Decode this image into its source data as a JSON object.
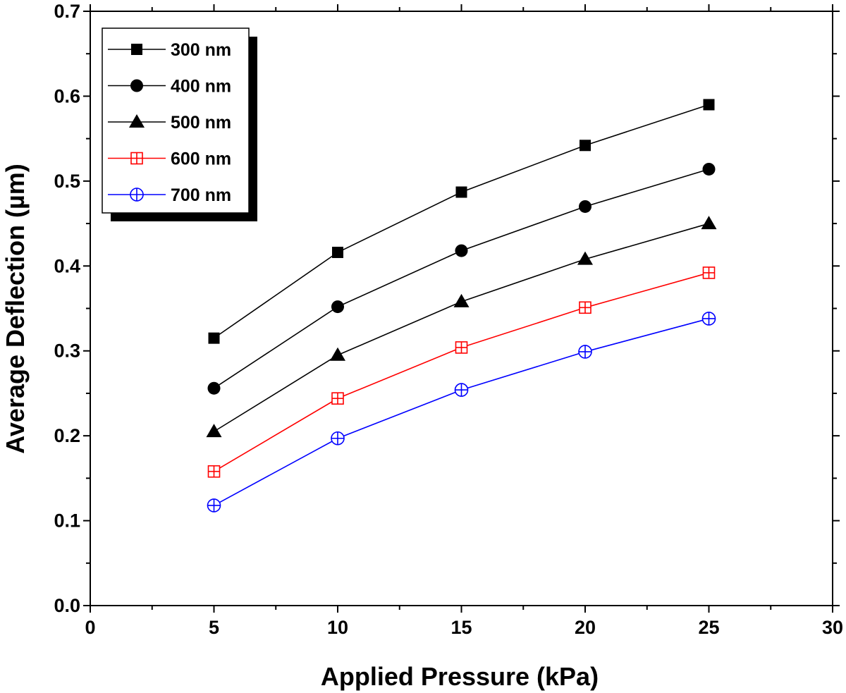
{
  "chart_data": {
    "type": "line",
    "xlabel": "Applied Pressure (kPa)",
    "ylabel": "Average Deflection (µm)",
    "xlim": [
      0,
      30
    ],
    "ylim": [
      0.0,
      0.7
    ],
    "xticks": [
      0,
      5,
      10,
      15,
      20,
      25,
      30
    ],
    "xtick_labels": [
      "0",
      "5",
      "10",
      "15",
      "20",
      "25",
      "30"
    ],
    "yticks": [
      0.0,
      0.1,
      0.2,
      0.3,
      0.4,
      0.5,
      0.6,
      0.7
    ],
    "ytick_labels": [
      "0.0",
      "0.1",
      "0.2",
      "0.3",
      "0.4",
      "0.5",
      "0.6",
      "0.7"
    ],
    "grid": false,
    "legend_position": "top-left",
    "x": [
      5,
      10,
      15,
      20,
      25
    ],
    "series": [
      {
        "name": "300 nm",
        "values": [
          0.315,
          0.416,
          0.487,
          0.542,
          0.59
        ],
        "color": "#000000",
        "marker": "square-filled"
      },
      {
        "name": "400 nm",
        "values": [
          0.256,
          0.352,
          0.418,
          0.47,
          0.514
        ],
        "color": "#000000",
        "marker": "circle-filled"
      },
      {
        "name": "500 nm",
        "values": [
          0.205,
          0.295,
          0.358,
          0.408,
          0.45
        ],
        "color": "#000000",
        "marker": "triangle-filled"
      },
      {
        "name": "600 nm",
        "values": [
          0.158,
          0.244,
          0.304,
          0.351,
          0.392
        ],
        "color": "#ff0000",
        "marker": "square-crossed-open"
      },
      {
        "name": "700 nm",
        "values": [
          0.118,
          0.197,
          0.254,
          0.299,
          0.338
        ],
        "color": "#0000ff",
        "marker": "circle-crossed-open"
      }
    ]
  }
}
